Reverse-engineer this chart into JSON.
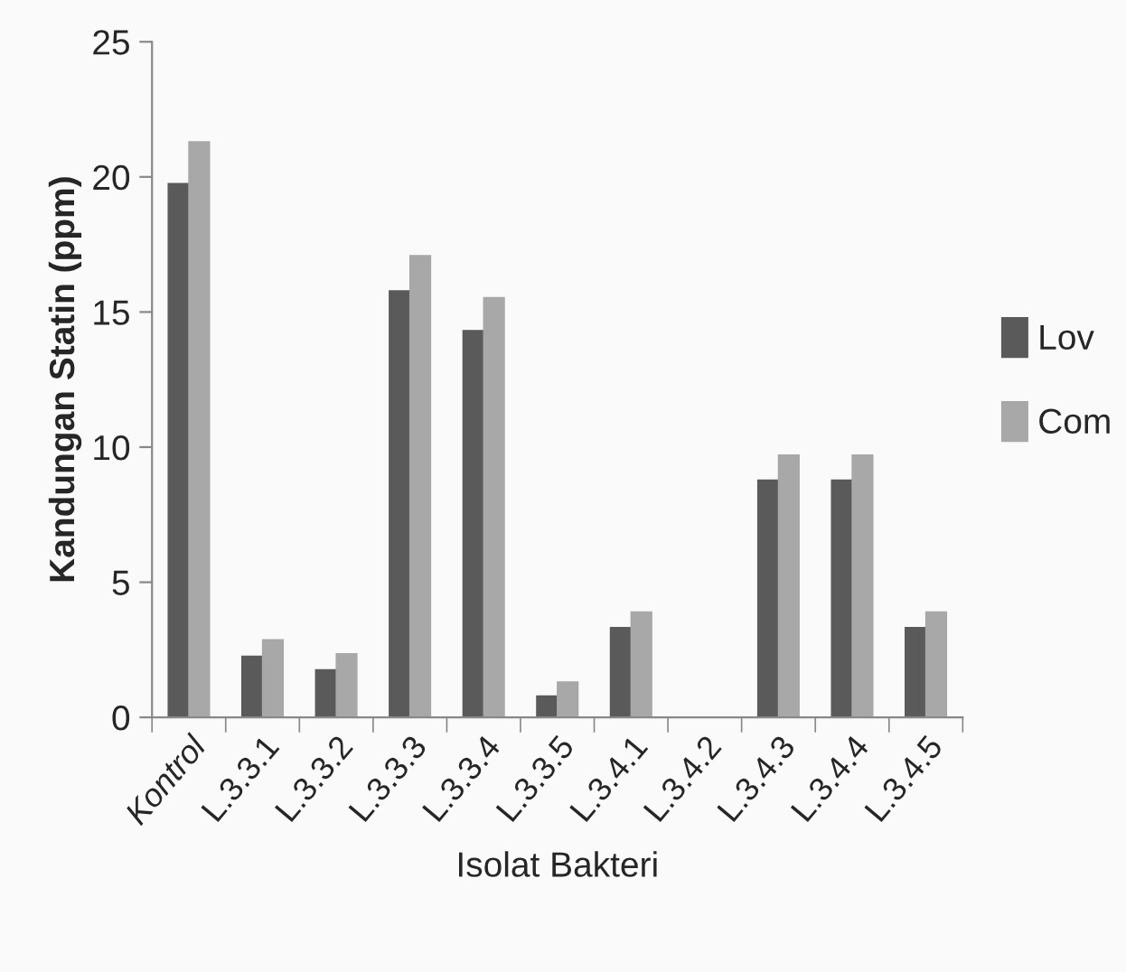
{
  "chart_data": {
    "type": "bar",
    "xlabel": "Isolat Bakteri",
    "ylabel": "Kandungan Statin (ppm)",
    "categories": [
      "Kontrol",
      "L.3.3.1",
      "L.3.3.2",
      "L.3.3.3",
      "L.3.3.4",
      "L.3.3.5",
      "L.3.4.1",
      "L.3.4.2",
      "L.3.4.3",
      "L.3.4.4",
      "L.3.4.5"
    ],
    "series": [
      {
        "name": "Lov",
        "color": "#5a5a5a",
        "values": [
          19.75,
          2.26,
          1.76,
          15.78,
          14.31,
          0.79,
          3.32,
          0,
          8.78,
          8.78,
          3.32
        ]
      },
      {
        "name": "Com",
        "color": "#a8a8a8",
        "values": [
          21.3,
          2.87,
          2.35,
          17.09,
          15.53,
          1.31,
          3.9,
          0,
          9.71,
          9.71,
          3.9
        ]
      }
    ],
    "ylim": [
      0,
      25
    ],
    "yticks": [
      0,
      5,
      10,
      15,
      20,
      25
    ],
    "grid": false,
    "legend": "right"
  }
}
